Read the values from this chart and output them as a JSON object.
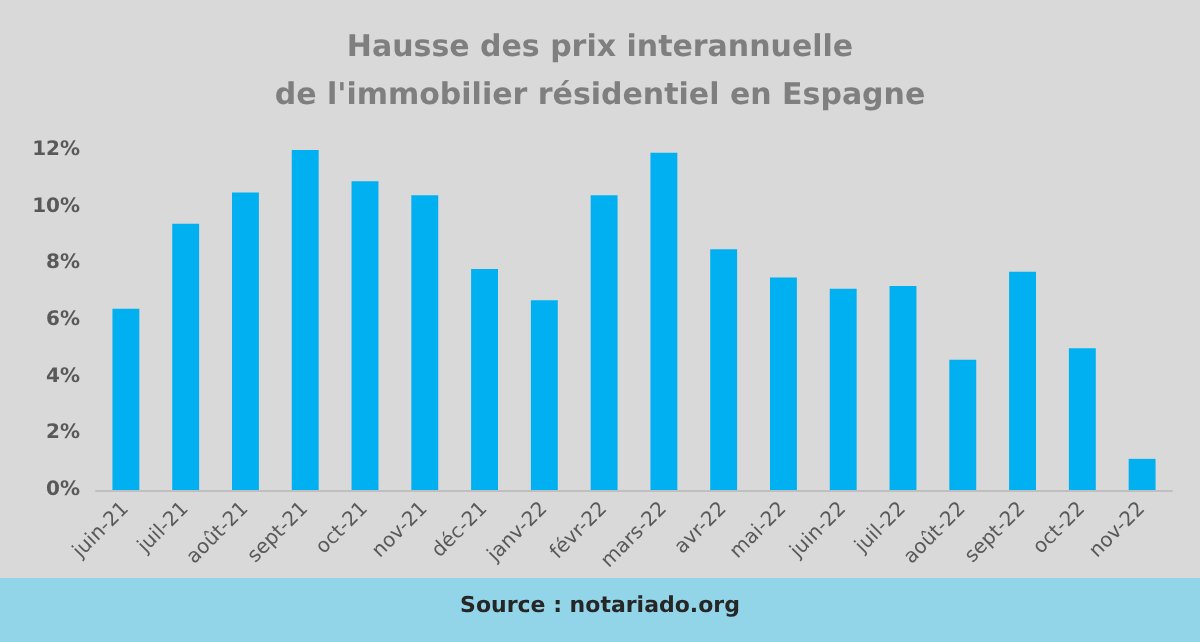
{
  "chart_data": {
    "type": "bar",
    "title": "Hausse des prix interannuelle\nde l'immobilier résidentiel en Espagne",
    "categories": [
      "juin-21",
      "juil-21",
      "août-21",
      "sept-21",
      "oct-21",
      "nov-21",
      "déc-21",
      "janv-22",
      "févr-22",
      "mars-22",
      "avr-22",
      "mai-22",
      "juin-22",
      "juil-22",
      "août-22",
      "sept-22",
      "oct-22",
      "nov-22"
    ],
    "values": [
      6.4,
      9.4,
      10.5,
      12.0,
      10.9,
      10.4,
      7.8,
      6.7,
      10.4,
      11.9,
      8.5,
      7.5,
      7.1,
      7.2,
      4.6,
      7.7,
      5.0,
      1.1
    ],
    "color": "#00b0f0",
    "ylim": [
      0,
      12
    ],
    "yticks": [
      {
        "value": 0,
        "label": "0%"
      },
      {
        "value": 2,
        "label": "2%"
      },
      {
        "value": 4,
        "label": "4%"
      },
      {
        "value": 6,
        "label": "6%"
      },
      {
        "value": 8,
        "label": "8%"
      },
      {
        "value": 10,
        "label": "10%"
      },
      {
        "value": 12,
        "label": "12%"
      }
    ],
    "grid": false,
    "annotations": [
      "Source : notariado.org"
    ]
  }
}
